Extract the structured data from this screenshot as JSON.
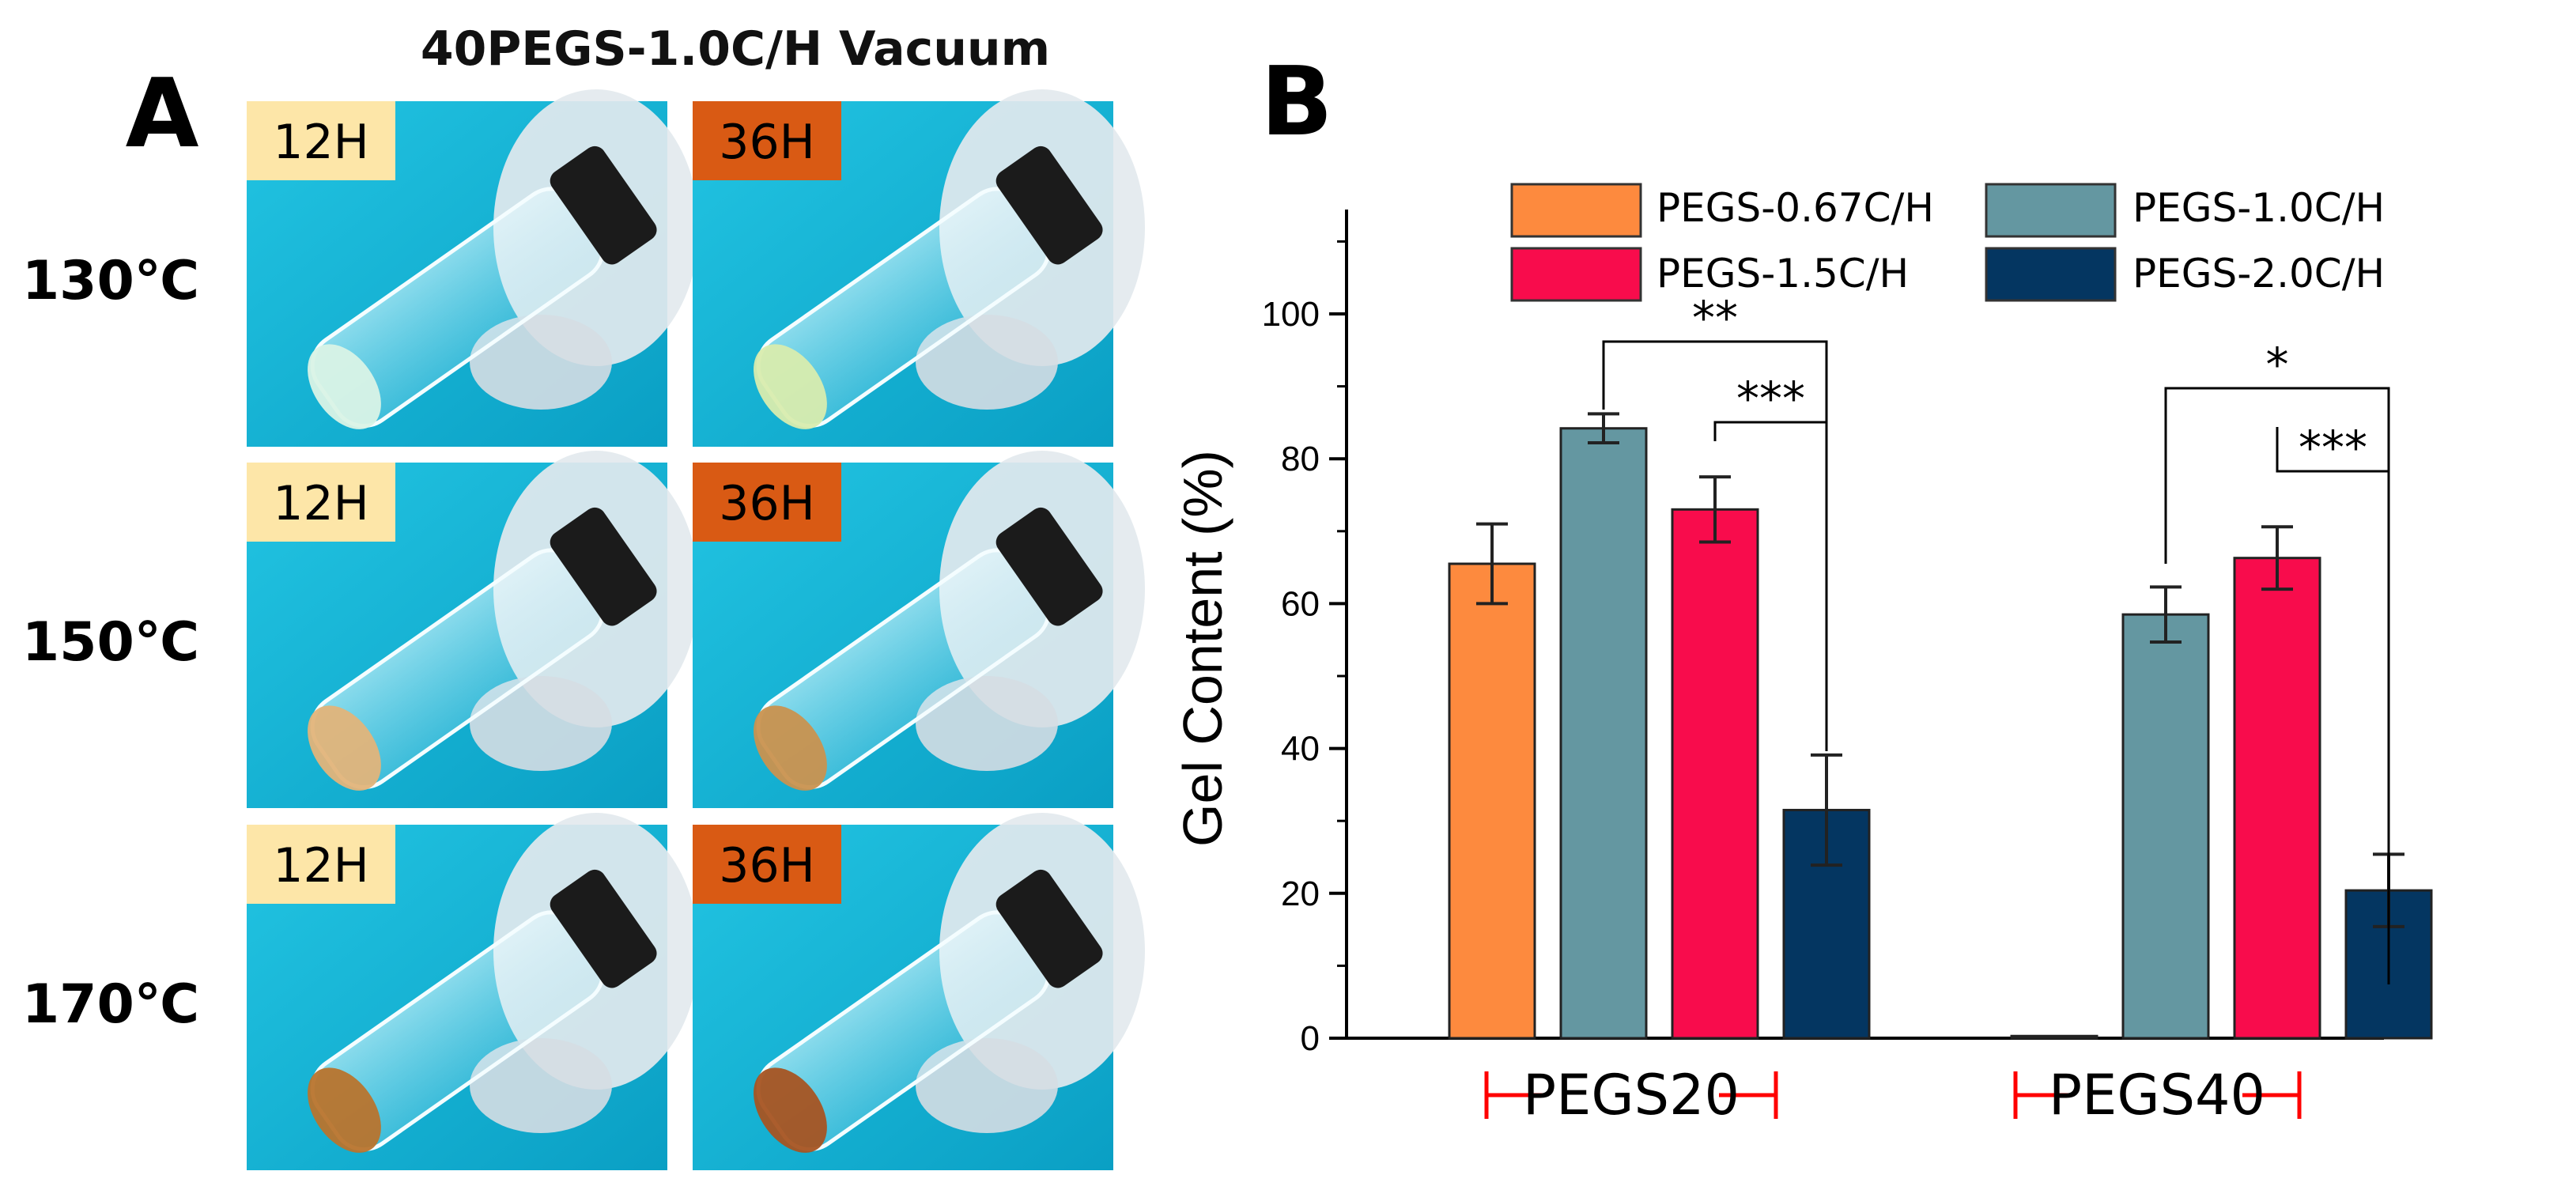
{
  "panel_a": {
    "letter": "A",
    "title": "40PEGS-1.0C/H Vacuum",
    "rows": [
      {
        "temp": "130℃",
        "tags": [
          "12H",
          "36H"
        ]
      },
      {
        "temp": "150℃",
        "tags": [
          "12H",
          "36H"
        ]
      },
      {
        "temp": "170℃",
        "tags": [
          "12H",
          "36H"
        ]
      }
    ],
    "colors": {
      "tag12": "#fde6a8",
      "tag36": "#d95a14",
      "background": "#12b3d3"
    }
  },
  "panel_b": {
    "letter": "B"
  },
  "chart_data": {
    "type": "bar",
    "title": "",
    "xlabel": "",
    "ylabel": "Gel Content (%)",
    "ylim": [
      0,
      110
    ],
    "yticks": [
      "0",
      "20",
      "40",
      "60",
      "80",
      "100"
    ],
    "categories": [
      "PEGS20",
      "PEGS40"
    ],
    "series": [
      {
        "name": "PEGS-0.67C/H",
        "color": "#fd8a3e",
        "values": [
          65.5,
          0.3
        ],
        "errors": [
          5.5,
          0.0
        ]
      },
      {
        "name": "PEGS-1.0C/H",
        "color": "#6497a1",
        "values": [
          84.2,
          58.5
        ],
        "errors": [
          2.0,
          3.8
        ]
      },
      {
        "name": "PEGS-1.5C/H",
        "color": "#f80c4c",
        "values": [
          73.0,
          66.3
        ],
        "errors": [
          4.5,
          4.3
        ]
      },
      {
        "name": "PEGS-2.0C/H",
        "color": "#043661",
        "values": [
          31.5,
          20.4
        ],
        "errors": [
          7.6,
          5.0
        ]
      }
    ],
    "significance": [
      {
        "group": "PEGS20",
        "from": "PEGS-1.0C/H",
        "to": "PEGS-2.0C/H",
        "label": "**"
      },
      {
        "group": "PEGS20",
        "from": "PEGS-1.5C/H",
        "to": "PEGS-2.0C/H",
        "label": "***"
      },
      {
        "group": "PEGS40",
        "from": "PEGS-1.0C/H",
        "to": "PEGS-2.0C/H",
        "label": "*"
      },
      {
        "group": "PEGS40",
        "from": "PEGS-1.5C/H",
        "to": "PEGS-2.0C/H",
        "label": "***"
      }
    ],
    "legend_position": "top",
    "group_bracket_color": "#ff0000"
  }
}
